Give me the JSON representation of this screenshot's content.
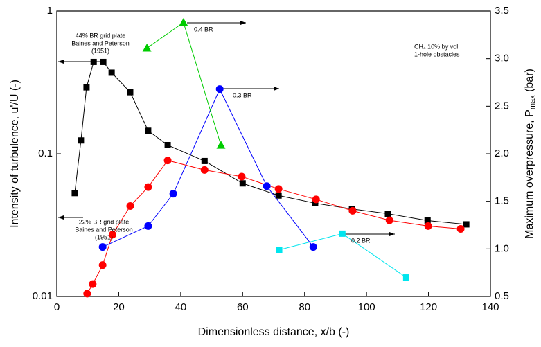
{
  "chart_data": {
    "type": "line",
    "xlabel": "Dimensionless distance, x/b (-)",
    "ylabel": "Intensity of turbulence, u'/U (-)",
    "y2label": "Maximum overpressure, P",
    "y2label_sub": "max",
    "y2label_end": " (bar)",
    "xlim": [
      0,
      140
    ],
    "xticks": [
      0,
      20,
      40,
      60,
      80,
      100,
      120,
      140
    ],
    "ylim": [
      0.01,
      1
    ],
    "yticks": [
      0.01,
      0.1,
      1
    ],
    "ylog": true,
    "y2lim": [
      0.5,
      3.5
    ],
    "y2ticks": [
      0.5,
      {
        "value": 1,
        "label": "1.0"
      },
      1.5,
      {
        "value": 2,
        "label": "2.0"
      },
      2.5,
      {
        "value": 3,
        "label": "3.0"
      },
      3.5
    ],
    "series": [
      {
        "color": "#000000",
        "marker": "square",
        "axis": "y",
        "x": [
          5.8,
          7.8,
          9.6,
          11.9,
          15.0,
          17.7,
          23.7,
          29.5,
          35.8,
          47.7,
          60.0,
          71.6,
          83.4,
          95.3,
          106.9,
          119.7,
          132.2
        ],
        "values": [
          0.053,
          0.124,
          0.292,
          0.44,
          0.44,
          0.37,
          0.27,
          0.145,
          0.115,
          0.089,
          0.062,
          0.051,
          0.045,
          0.041,
          0.038,
          0.034,
          0.032
        ]
      },
      {
        "color": "#ff0000",
        "marker": "circle",
        "axis": "y2",
        "x": [
          9.8,
          11.6,
          14.8,
          18.0,
          23.7,
          29.5,
          35.8,
          47.7,
          59.7,
          71.6,
          83.7,
          95.5,
          107.4,
          119.9,
          130.4
        ],
        "values": [
          0.53,
          0.63,
          0.83,
          1.15,
          1.45,
          1.65,
          1.93,
          1.83,
          1.76,
          1.63,
          1.52,
          1.4,
          1.3,
          1.24,
          1.21
        ]
      },
      {
        "color": "#0000ff",
        "marker": "circle",
        "axis": "y2",
        "x": [
          14.8,
          29.5,
          37.6,
          52.6,
          67.8,
          82.8
        ],
        "values": [
          1.02,
          1.24,
          1.58,
          2.68,
          1.66,
          1.02
        ]
      },
      {
        "color": "#00cc00",
        "marker": "triangle",
        "axis": "y2",
        "x": [
          29.1,
          40.9,
          53.0
        ],
        "values": [
          3.11,
          3.38,
          2.09
        ]
      },
      {
        "color": "#00e5ee",
        "marker": "square",
        "axis": "y2",
        "x": [
          71.8,
          92.2,
          112.8
        ],
        "values": [
          0.99,
          1.16,
          0.7
        ]
      }
    ],
    "annotations": [
      [
        "44% BR grid plate",
        "Baines and Peterson",
        "(1951)"
      ],
      [
        "22% BR grid plate",
        "Baines and Peterson",
        "(1951)"
      ],
      [
        "0.4 BR"
      ],
      [
        "0.3 BR"
      ],
      [
        "0.2 BR"
      ],
      [
        "CH₄ 10% by vol.",
        "1-hole obstacles"
      ]
    ]
  }
}
